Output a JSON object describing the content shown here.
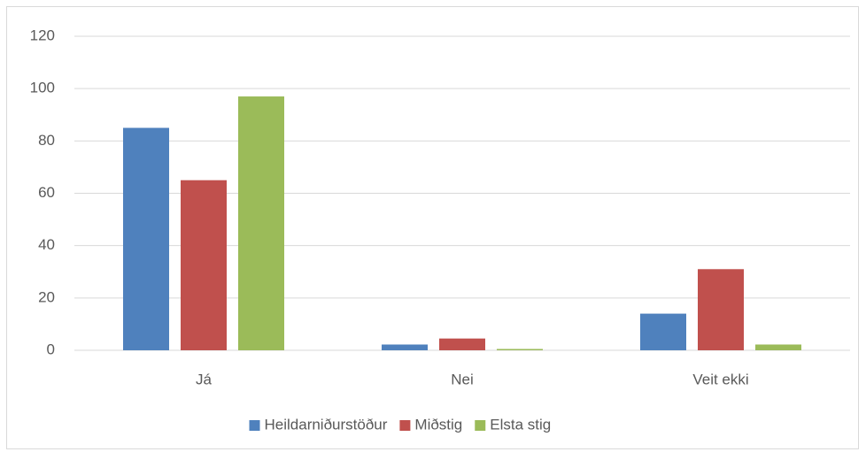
{
  "chart_data": {
    "type": "bar",
    "categories": [
      "Já",
      "Nei",
      "Veit ekki"
    ],
    "series": [
      {
        "name": "Heildarniðurstöður",
        "color": "#4f81bd",
        "values": [
          85,
          2.2,
          14
        ]
      },
      {
        "name": "Miðstig",
        "color": "#c0504d",
        "values": [
          65,
          4.5,
          31
        ]
      },
      {
        "name": "Elsta stig",
        "color": "#9bbb59",
        "values": [
          97,
          0.5,
          2.2
        ]
      }
    ],
    "ylim": [
      0,
      120
    ],
    "yticks": [
      0,
      20,
      40,
      60,
      80,
      100,
      120
    ],
    "grid": true,
    "legend": "bottom"
  }
}
